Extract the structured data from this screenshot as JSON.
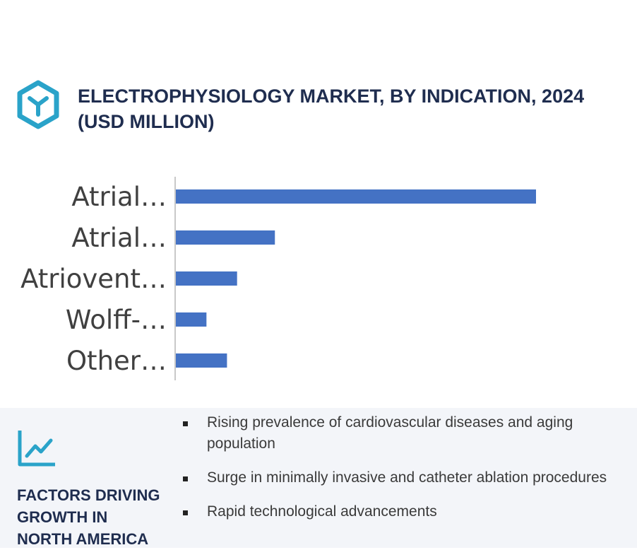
{
  "header": {
    "title": "ELECTROPHYSIOLOGY MARKET, BY INDICATION, 2024 (USD MILLION)"
  },
  "colors": {
    "brand_teal": "#2aa3c9",
    "navy": "#1f2d4f",
    "bar": "#4472c4",
    "panel_bg": "#f3f5f9"
  },
  "icons": {
    "logo": "hexagon-y-logo-icon",
    "trend": "trend-line-chart-icon"
  },
  "chart_data": {
    "type": "bar",
    "orientation": "horizontal",
    "categories": [
      "Atrial…",
      "Atrial…",
      "Atriovent…",
      "Wolff-…",
      "Other…"
    ],
    "values": [
      100,
      27.5,
      17,
      8.5,
      14.2
    ],
    "title": "",
    "xlabel": "",
    "ylabel": "",
    "xlim": [
      0,
      100
    ],
    "grid": false,
    "legend": "none"
  },
  "factors": {
    "title": "FACTORS DRIVING GROWTH IN NORTH AMERICA",
    "items": [
      "Rising prevalence of cardiovascular diseases and aging population",
      "Surge in minimally invasive and catheter ablation procedures",
      "Rapid technological advancements"
    ]
  }
}
